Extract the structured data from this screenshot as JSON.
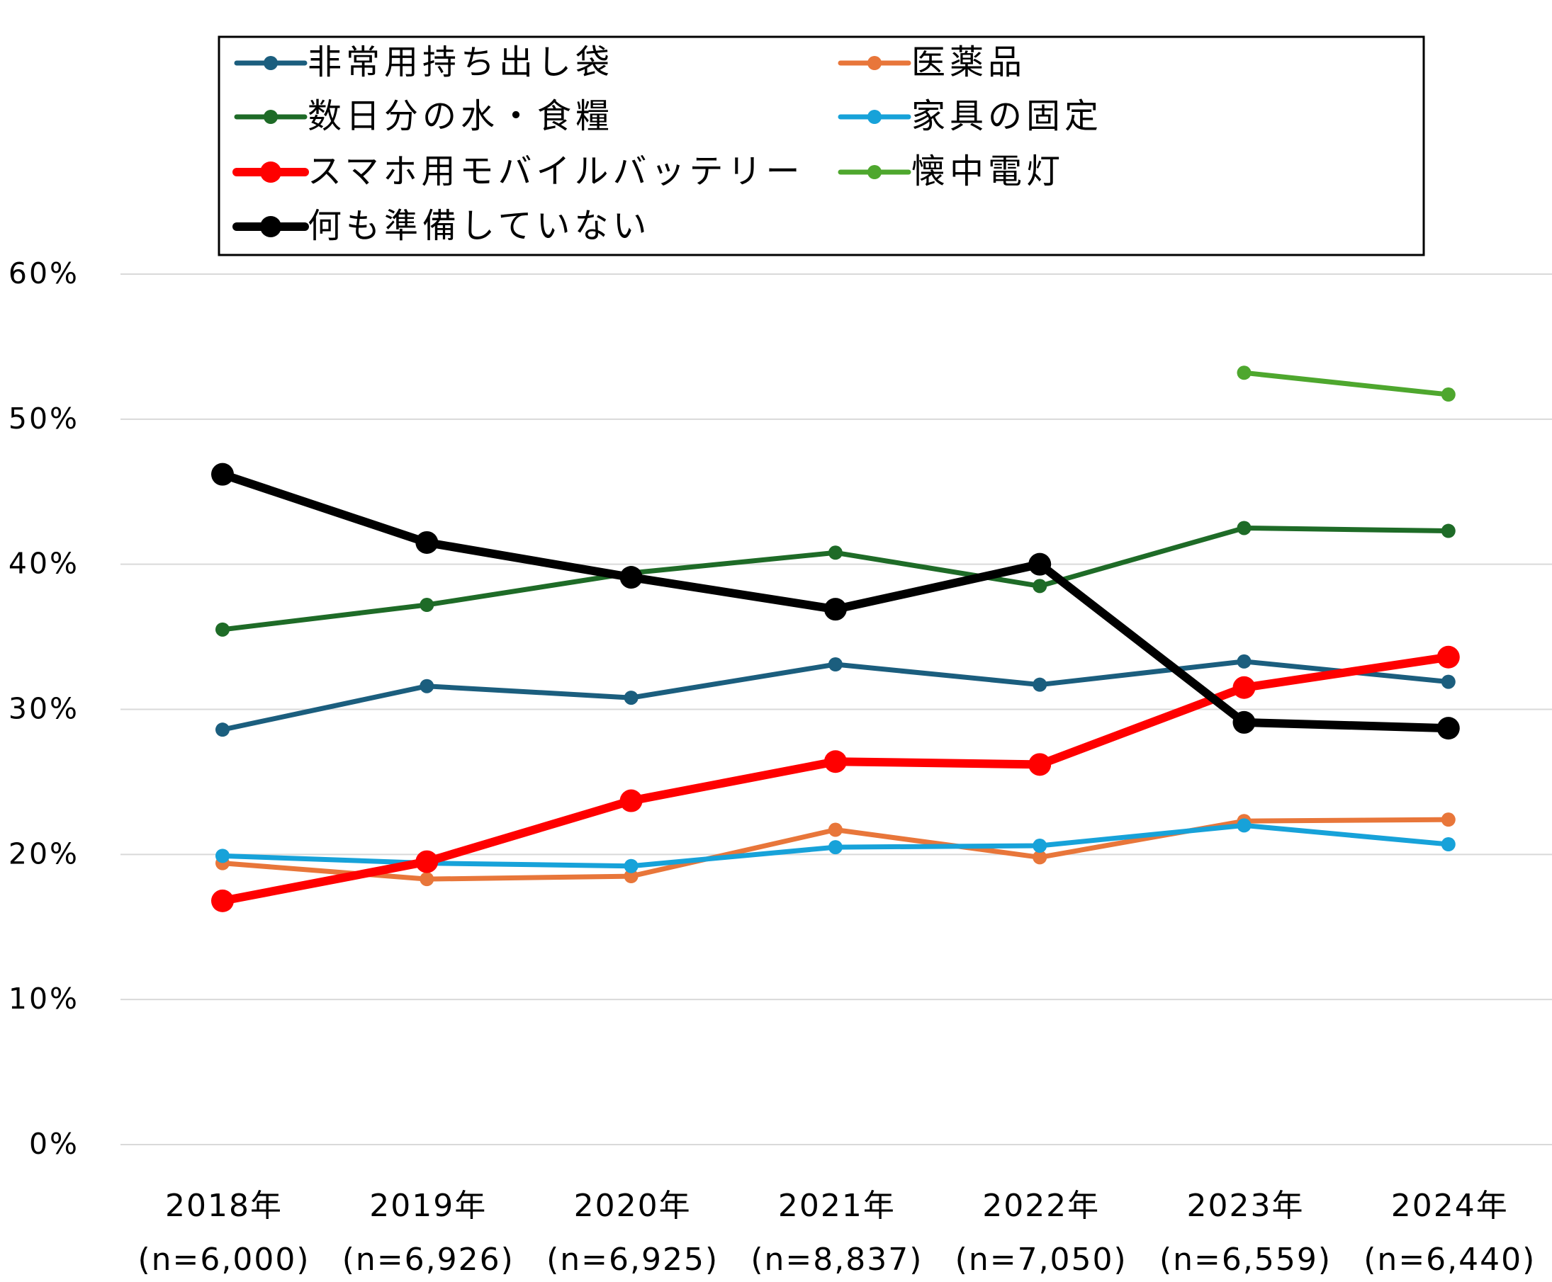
{
  "chart_data": {
    "type": "line",
    "title": "",
    "xlabel": "",
    "ylabel": "",
    "categories": [
      [
        "2018年",
        "(n=6,000)"
      ],
      [
        "2019年",
        "(n=6,926)"
      ],
      [
        "2020年",
        "(n=6,925)"
      ],
      [
        "2021年",
        "(n=8,837)"
      ],
      [
        "2022年",
        "(n=7,050)"
      ],
      [
        "2023年",
        "(n=6,559)"
      ],
      [
        "2024年",
        "(n=6,440)"
      ]
    ],
    "yticks": [
      {
        "value": 0,
        "label": "0%"
      },
      {
        "value": 10,
        "label": "10%"
      },
      {
        "value": 20,
        "label": "20%"
      },
      {
        "value": 30,
        "label": "30%"
      },
      {
        "value": 40,
        "label": "40%"
      },
      {
        "value": 50,
        "label": "50%"
      },
      {
        "value": 60,
        "label": "60%"
      }
    ],
    "ylim": [
      0,
      60
    ],
    "grid": true,
    "legend_position": "top",
    "series": [
      {
        "name": "非常用持ち出し袋",
        "color": "#1b5e7e",
        "weight": "normal",
        "values": [
          28.6,
          31.6,
          30.8,
          33.1,
          31.7,
          33.3,
          31.9
        ]
      },
      {
        "name": "医薬品",
        "color": "#e8763a",
        "weight": "normal",
        "values": [
          19.4,
          18.3,
          18.5,
          21.7,
          19.8,
          22.3,
          22.4
        ]
      },
      {
        "name": "数日分の水・食糧",
        "color": "#1e6b27",
        "weight": "normal",
        "values": [
          35.5,
          37.2,
          39.4,
          40.8,
          38.5,
          42.5,
          42.3
        ]
      },
      {
        "name": "家具の固定",
        "color": "#17a2d9",
        "weight": "normal",
        "values": [
          19.9,
          19.4,
          19.2,
          20.5,
          20.6,
          22.0,
          20.7
        ]
      },
      {
        "name": "スマホ用モバイルバッテリー",
        "color": "#ff0000",
        "weight": "bold",
        "values": [
          16.8,
          19.5,
          23.7,
          26.4,
          26.2,
          31.5,
          33.6
        ]
      },
      {
        "name": "懐中電灯",
        "color": "#4ea72e",
        "weight": "normal",
        "values": [
          null,
          null,
          null,
          null,
          null,
          53.2,
          51.7
        ]
      },
      {
        "name": "何も準備していない",
        "color": "#000000",
        "weight": "bold",
        "values": [
          46.2,
          41.5,
          39.1,
          36.9,
          40.0,
          29.1,
          28.7
        ]
      }
    ]
  }
}
